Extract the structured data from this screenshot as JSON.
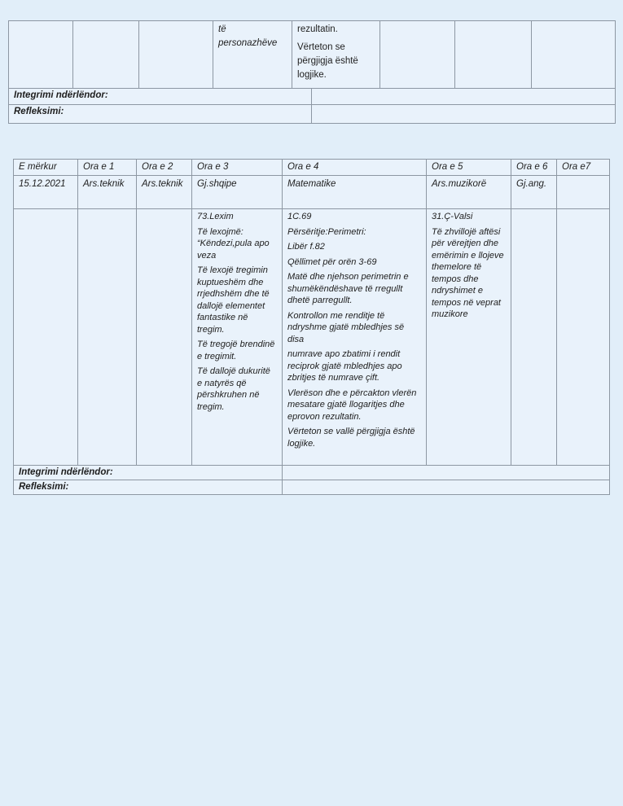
{
  "colors": {
    "page_bg": "#e1eef9",
    "cell_bg": "#e9f2fb",
    "border": "#8d97a3",
    "text": "#1e1e1e"
  },
  "top_table": {
    "characters_cell_lines": [
      "të",
      "personazhëve"
    ],
    "result_cell_paragraphs": [
      "rezultatin.",
      "Vërteton se përgjigja është logjike."
    ],
    "integrimi_label": "Integrimi ndërlëndor:",
    "refleksimi_label": "Refleksimi:"
  },
  "schedule_table": {
    "header": [
      "E mërkur",
      "Ora e 1",
      "Ora e 2",
      "Ora e 3",
      "Ora e 4",
      "Ora e 5",
      "Ora e 6",
      "Ora e7"
    ],
    "subjects": [
      "15.12.2021",
      "Ars.teknik",
      "Ars.teknik",
      "Gj.shqipe",
      "Matematike",
      "Ars.muzikorë",
      "Gj.ang.",
      ""
    ],
    "content": {
      "gj_shqipe": [
        "73.Lexim",
        "Të lexojmë: “Këndezi,pula apo veza",
        "Të lexojë tregimin kuptueshëm dhe rrjedhshëm dhe të dallojë elementet fantastike në tregim.",
        "Të tregojë brendinë e tregimit.",
        "Të dallojë dukuritë e natyrës që përshkruhen në tregim."
      ],
      "matematike": [
        "1C.69",
        "Përsëritje:Perimetri:",
        "Libër f.82",
        "Qëllimet për orën 3-69",
        "Matë dhe njehson perimetrin e shumëkëndëshave të rregullt dhetë parregullt.",
        "Kontrollon me renditje të ndryshme gjatë mbledhjes së disa",
        "numrave apo zbatimi i rendit reciprok gjatë mbledhjes apo zbritjes të numrave çift.",
        "Vlerëson dhe e përcakton vlerën mesatare gjatë llogaritjes dhe eprovon rezultatin.",
        "Vërteton se vallë përgjigja është logjike."
      ],
      "ars_muzikore": [
        "31.Ç-Valsi",
        "Të zhvillojë aftësi për vërejtjen dhe emërimin e llojeve themelore të tempos dhe ndryshimet e tempos në veprat muzikore"
      ]
    },
    "integrimi_label": "Integrimi ndërlëndor:",
    "refleksimi_label": "Refleksimi:"
  }
}
